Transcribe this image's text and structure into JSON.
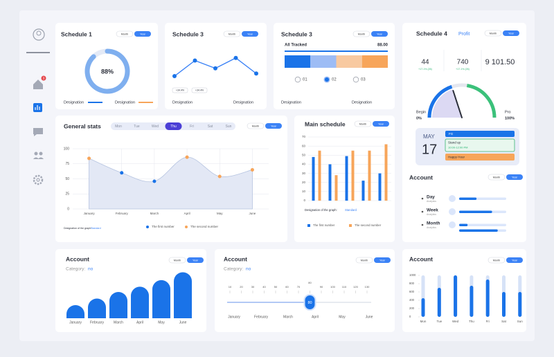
{
  "sidebar": {
    "notifications": 3
  },
  "schedule_1": {
    "title": "Schedule 1",
    "toggle": [
      "Month",
      "Year"
    ],
    "value": 88,
    "value_label": "88%",
    "legend": [
      "Designation",
      "Designation"
    ],
    "colors": [
      "#1a73e8",
      "#f7a55a"
    ]
  },
  "schedule_3_line": {
    "title": "Schedule 3",
    "toggle": [
      "Month",
      "Year"
    ],
    "values": [
      40,
      70,
      55,
      75,
      45
    ],
    "badges": [
      "+34.4%",
      "+34.4%"
    ],
    "legend": [
      "Designation",
      "Designation"
    ]
  },
  "schedule_3_bar": {
    "title": "Schedule 3",
    "toggle": [
      "Month",
      "Year"
    ],
    "label": "All Tracked",
    "total": 88,
    "total_label": "88.00",
    "segments": [
      {
        "value": 25,
        "color": "#1a73e8"
      },
      {
        "value": 25,
        "color": "#9dbcf5"
      },
      {
        "value": 25,
        "color": "#f8c9a0"
      },
      {
        "value": 25,
        "color": "#f7a55a"
      }
    ],
    "options": [
      "01",
      "02",
      "03"
    ],
    "selected": 1,
    "legend": [
      "Designation",
      "Designation"
    ]
  },
  "schedule_4": {
    "title": "Schedule 4",
    "subtitle": "Profit",
    "toggle": [
      "Month",
      "Year"
    ],
    "stats": [
      {
        "value": 44,
        "change": "+17.1% (26)"
      },
      {
        "value": 740,
        "change": "+17.1% (26)"
      },
      {
        "value": 9101.5,
        "label": "9 101.50"
      }
    ],
    "gauge": {
      "value": 40,
      "start_label": "Begin",
      "start_value": "0%",
      "end_label": "Pro",
      "end_value": "100%"
    }
  },
  "calendar": {
    "month": "MAY",
    "day": 17,
    "events": [
      {
        "title": "FG"
      },
      {
        "title": "Stand up",
        "time": "10:00-12:00 PM"
      },
      {
        "title": "Happy Hour"
      }
    ]
  },
  "account_progress": {
    "title": "Account",
    "toggle": [
      "Month",
      "Year"
    ],
    "rows": [
      {
        "name": "Day",
        "subtitle": "Analytics",
        "values": [
          37
        ]
      },
      {
        "name": "Week",
        "subtitle": "Analytics",
        "values": [
          70
        ]
      },
      {
        "name": "Month",
        "subtitle": "Analytics",
        "values": [
          18,
          82
        ]
      }
    ]
  },
  "general_stats": {
    "title": "General stats",
    "days": [
      "Mon",
      "Tue",
      "Wed",
      "Thu",
      "Fri",
      "Sat",
      "Sun"
    ],
    "selected_day": 3,
    "toggle": [
      "Month",
      "Year"
    ],
    "chart": {
      "type": "area",
      "categories": [
        "January",
        "February",
        "March",
        "April",
        "May",
        "June"
      ],
      "ylim": [
        0,
        100
      ],
      "yticks": [
        0,
        25,
        50,
        75,
        100
      ],
      "grid": true,
      "area": {
        "values": [
          84,
          60,
          46,
          86,
          54,
          65
        ],
        "color": "#e3e8f5"
      },
      "series": [
        {
          "name": "The first number",
          "color": "#1a73e8",
          "values": [
            null,
            60,
            46,
            null,
            null,
            null
          ]
        },
        {
          "name": "The second number",
          "color": "#f7a55a",
          "values": [
            84,
            null,
            null,
            86,
            54,
            65
          ]
        }
      ],
      "caption": "Designation of the graph:",
      "caption_value": "Standard"
    }
  },
  "main_schedule": {
    "title": "Main schedule",
    "toggle": [
      "Month",
      "Year"
    ],
    "chart": {
      "type": "bar",
      "ylim": [
        0,
        70
      ],
      "yticks": [
        0,
        10,
        20,
        30,
        40,
        50,
        60,
        70
      ],
      "grid": true,
      "series": [
        {
          "name": "The first number",
          "color": "#1a73e8",
          "values": [
            48,
            40,
            49,
            22,
            30
          ]
        },
        {
          "name": "The second number",
          "color": "#f7a55a",
          "values": [
            55,
            28,
            55,
            55,
            62
          ]
        }
      ],
      "caption": "Designation of the graph:",
      "caption_value": "Standard"
    }
  },
  "account_bars": {
    "title": "Account",
    "category_label": "Category:",
    "category": "no",
    "toggle": [
      "Month",
      "Year"
    ],
    "chart": {
      "type": "bar",
      "categories": [
        "January",
        "February",
        "March",
        "April",
        "May",
        "June"
      ],
      "values": [
        20,
        30,
        40,
        48,
        58,
        70
      ],
      "color": "#1a73e8"
    }
  },
  "account_slider": {
    "title": "Account",
    "category_label": "Category:",
    "category": "no",
    "toggle": [
      "Month",
      "Year"
    ],
    "slider": {
      "ticks": [
        10,
        20,
        30,
        40,
        50,
        60,
        70,
        80,
        90,
        100,
        110,
        120,
        130
      ],
      "value": 80,
      "months": [
        "January",
        "February",
        "March",
        "April",
        "May",
        "June"
      ]
    }
  },
  "account_days": {
    "title": "Account",
    "toggle": [
      "Month",
      "Year"
    ],
    "chart": {
      "type": "bar",
      "categories": [
        "Mon",
        "Tue",
        "Wed",
        "Thu",
        "Fri",
        "Sat",
        "Sun"
      ],
      "values": [
        450,
        700,
        1000,
        750,
        900,
        600,
        600
      ],
      "ylim": [
        0,
        1000
      ],
      "yticks": [
        0,
        200,
        400,
        600,
        800,
        1000
      ],
      "color": "#1a73e8",
      "track_color": "#d6e2f7"
    }
  }
}
